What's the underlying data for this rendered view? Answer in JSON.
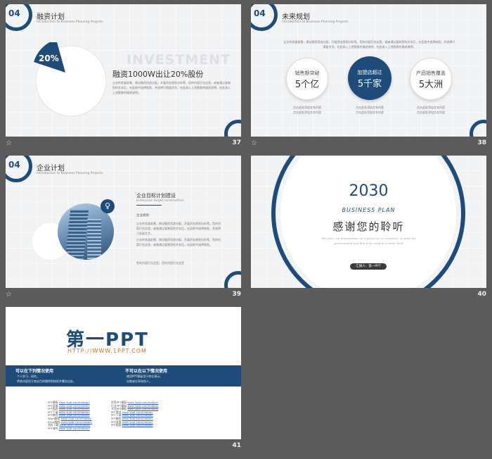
{
  "slide37": {
    "num": "04",
    "title": "融资计划",
    "subtitle": "Introduction to Business Planning Projects",
    "pct": "20%",
    "bg_word": "INVESTMENT",
    "headline": "融资1000W出让20%股份",
    "body": "企业的发展前景，建议融资用途分配，开展资金规划分析等。您的内容打在这里，或者通过复制您的文本后，在此框中选择粘贴，并选择只保留文字。在此录入上述图表的描述说明，在此录入上述图表的描述说明。",
    "page": "37"
  },
  "slide38": {
    "num": "04",
    "title": "未来规划",
    "subtitle": "Introduction to Business Planning Projects",
    "intro": "企业的发展前景，建议融资用途分配，开展资金规划分析等。您的内容打在这里，或者通过复制您的文本后，在此框中选择粘贴，并选择只保留文字。在此录入上述图表的描述说明，在此录入上述图表的描述说明。",
    "circles": [
      {
        "label": "销售额突破",
        "value": "5个亿",
        "desc1": "点击此处添加文本内容",
        "desc2": "点击此处添加文本内容"
      },
      {
        "label": "加盟店超过",
        "value": "5千家",
        "desc1": "点击此处添加文本内容",
        "desc2": "点击此处添加文本内容"
      },
      {
        "label": "产品销售覆盖",
        "value": "5大洲",
        "desc1": "点击此处添加文本内容",
        "desc2": "点击此处添加文本内容"
      }
    ],
    "page": "38"
  },
  "slide39": {
    "num": "04",
    "title": "企业计划",
    "subtitle": "Introduction to Business Planning Projects",
    "heading": "企业目标计划建设",
    "heading_en": "Enterprise target construction",
    "label": "企业规划",
    "body1": "企业的发展前景，建议融资用途分配，开展资金规划分析等。您的内容打在这里，或者通过复制您的文本后，在此框中选择粘贴，并选择只保留文字。",
    "body2": "企业的发展前景，建议融资用途分配，开展资金规划分析等。您的内容打在这里，或者通过复制您的文本后，在此框中选择粘贴。",
    "footer": "您的内容打在这里，您的内容打在这里",
    "page": "39"
  },
  "slide40": {
    "year": "2030",
    "tag": "BUSINESS PLAN",
    "thanks": "感谢您的聆听",
    "desc": "The user can demonstrate on a projector or computer, or print the presentation and film to be used in a wider field",
    "button": "汇报人：第一PPT",
    "page": "40"
  },
  "slide41": {
    "logo": "第一PPT",
    "url": "HTTP://WWW.1PPT.COM",
    "can_title": "可以在下列情况使用",
    "can_items": [
      "个人学习、研究。",
      "将其内容用于商业目的需得到授权并署名出处。"
    ],
    "cannot_title": "不可以在以下情况使用",
    "cannot_items": [
      "使用PPT模板用于商业演示。",
      "出售或分享给他人。"
    ],
    "links_left": [
      "PPT模板",
      "PPT背景",
      "PPT图表",
      "PPT下载",
      "PPT教程",
      "Word教程",
      "Excel教程",
      "资料下载",
      "PPT课件"
    ],
    "links_right": [
      "优秀PPT模板",
      "行业PPT模板",
      "节日PPT模板",
      "PPT素材",
      "PPT下载",
      "PPT教程",
      "PPT背景",
      "PPT图表"
    ],
    "link_url": "www.1ppt.com/moban/",
    "page": "41"
  },
  "icons": {
    "star": "star-icon",
    "lightbulb": "lightbulb-icon"
  },
  "colors": {
    "navy": "#1f4b7a",
    "orange": "#e46b1f",
    "bg": "#5b5b5b"
  }
}
